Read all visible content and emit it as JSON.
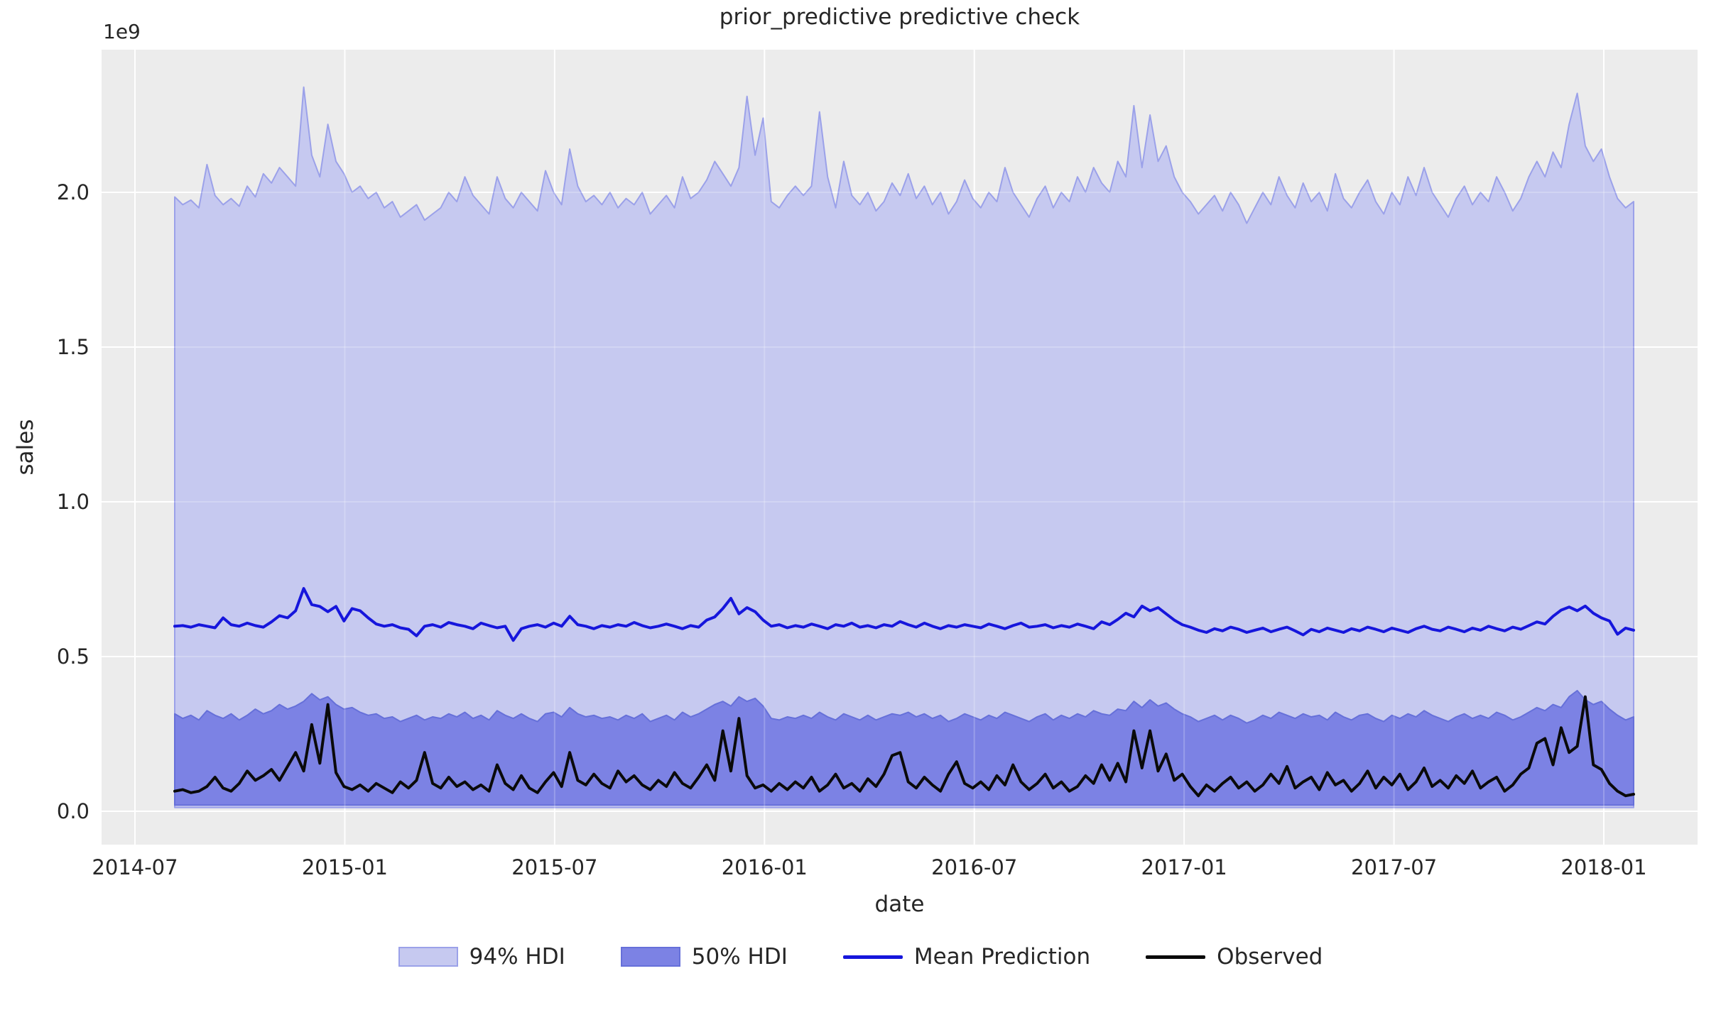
{
  "figure": {
    "title": "prior_predictive predictive check",
    "offset_text": "1e9",
    "xlabel": "date",
    "ylabel": "sales"
  },
  "axes": {
    "x_tick_labels": [
      "2014-07",
      "2015-01",
      "2015-07",
      "2016-01",
      "2016-07",
      "2017-01",
      "2017-07",
      "2018-01"
    ],
    "y_tick_labels": [
      "0.0",
      "0.5",
      "1.0",
      "1.5",
      "2.0"
    ],
    "background_color": "#ececec",
    "grid_color": "#ffffff",
    "text_color": "#262626"
  },
  "legend": {
    "items": [
      {
        "label": "94% HDI",
        "kind": "patch",
        "color": "#c6c9f0",
        "edge": "#9ba1e9"
      },
      {
        "label": "50% HDI",
        "kind": "patch",
        "color": "#7c82e4",
        "edge": "#6670d9"
      },
      {
        "label": "Mean Prediction",
        "kind": "line",
        "color": "#1616dc"
      },
      {
        "label": "Observed",
        "kind": "line",
        "color": "#0a0a0a"
      }
    ]
  },
  "chart_data": {
    "type": "area",
    "title": "prior_predictive predictive check",
    "xlabel": "date",
    "ylabel": "sales",
    "y_scale_factor": "1e9",
    "grid": true,
    "legend_position": "bottom center",
    "x": {
      "start_date": "2014-08-03",
      "step_days": 7,
      "n_points": 182,
      "end_date": "2018-01-21"
    },
    "xlim": [
      "2014-06-01",
      "2018-03-25"
    ],
    "ylim": [
      -0.11,
      2.46
    ],
    "y_axis_ticks": [
      0.0,
      0.5,
      1.0,
      1.5,
      2.0
    ],
    "series": [
      {
        "name": "94% HDI",
        "kind": "band",
        "fill": "#c6c9f0",
        "edge": "#9ba1e9",
        "lower_approx": 0.012,
        "upper": [
          1.985,
          1.96,
          1.975,
          1.95,
          2.09,
          1.99,
          1.96,
          1.98,
          1.955,
          2.02,
          1.985,
          2.06,
          2.03,
          2.08,
          2.05,
          2.02,
          2.34,
          2.12,
          2.05,
          2.22,
          2.1,
          2.06,
          2.0,
          2.02,
          1.98,
          2.0,
          1.95,
          1.97,
          1.92,
          1.94,
          1.96,
          1.91,
          1.93,
          1.95,
          2.0,
          1.97,
          2.05,
          1.99,
          1.96,
          1.93,
          2.05,
          1.98,
          1.95,
          2.0,
          1.97,
          1.94,
          2.07,
          2.0,
          1.96,
          2.14,
          2.02,
          1.97,
          1.99,
          1.96,
          2.0,
          1.95,
          1.98,
          1.96,
          2.0,
          1.93,
          1.96,
          1.99,
          1.95,
          2.05,
          1.98,
          2.0,
          2.04,
          2.1,
          2.06,
          2.02,
          2.08,
          2.31,
          2.12,
          2.24,
          1.97,
          1.95,
          1.99,
          2.02,
          1.99,
          2.02,
          2.26,
          2.05,
          1.95,
          2.1,
          1.99,
          1.96,
          2.0,
          1.94,
          1.97,
          2.03,
          1.99,
          2.06,
          1.98,
          2.02,
          1.96,
          2.0,
          1.93,
          1.97,
          2.04,
          1.98,
          1.95,
          2.0,
          1.97,
          2.08,
          2.0,
          1.96,
          1.92,
          1.98,
          2.02,
          1.95,
          2.0,
          1.97,
          2.05,
          2.0,
          2.08,
          2.03,
          2.0,
          2.1,
          2.05,
          2.28,
          2.08,
          2.25,
          2.1,
          2.15,
          2.05,
          2.0,
          1.97,
          1.93,
          1.96,
          1.99,
          1.94,
          2.0,
          1.96,
          1.9,
          1.95,
          2.0,
          1.96,
          2.05,
          1.99,
          1.95,
          2.03,
          1.97,
          2.0,
          1.94,
          2.06,
          1.98,
          1.95,
          2.0,
          2.04,
          1.97,
          1.93,
          2.0,
          1.96,
          2.05,
          1.99,
          2.08,
          2.0,
          1.96,
          1.92,
          1.98,
          2.02,
          1.96,
          2.0,
          1.97,
          2.05,
          2.0,
          1.94,
          1.98,
          2.05,
          2.1,
          2.05,
          2.13,
          2.08,
          2.22,
          2.32,
          2.15,
          2.1,
          2.14,
          2.05,
          1.98,
          1.95,
          1.97
        ]
      },
      {
        "name": "50% HDI",
        "kind": "band",
        "fill": "#7c82e4",
        "edge": "#6670d9",
        "lower_approx": 0.02,
        "upper": [
          0.315,
          0.3,
          0.31,
          0.295,
          0.325,
          0.31,
          0.3,
          0.315,
          0.295,
          0.31,
          0.33,
          0.315,
          0.325,
          0.345,
          0.33,
          0.34,
          0.355,
          0.38,
          0.36,
          0.37,
          0.345,
          0.33,
          0.335,
          0.32,
          0.31,
          0.315,
          0.3,
          0.305,
          0.29,
          0.3,
          0.31,
          0.295,
          0.305,
          0.3,
          0.315,
          0.305,
          0.32,
          0.3,
          0.31,
          0.295,
          0.325,
          0.31,
          0.3,
          0.315,
          0.3,
          0.29,
          0.315,
          0.32,
          0.305,
          0.335,
          0.315,
          0.305,
          0.31,
          0.3,
          0.305,
          0.295,
          0.31,
          0.3,
          0.315,
          0.29,
          0.3,
          0.31,
          0.295,
          0.32,
          0.305,
          0.315,
          0.33,
          0.345,
          0.355,
          0.34,
          0.37,
          0.355,
          0.365,
          0.34,
          0.3,
          0.295,
          0.305,
          0.3,
          0.31,
          0.3,
          0.32,
          0.305,
          0.295,
          0.315,
          0.305,
          0.295,
          0.31,
          0.295,
          0.305,
          0.315,
          0.31,
          0.32,
          0.305,
          0.315,
          0.3,
          0.31,
          0.29,
          0.3,
          0.315,
          0.305,
          0.295,
          0.31,
          0.3,
          0.32,
          0.31,
          0.3,
          0.29,
          0.305,
          0.315,
          0.295,
          0.31,
          0.3,
          0.315,
          0.305,
          0.325,
          0.315,
          0.31,
          0.33,
          0.325,
          0.355,
          0.335,
          0.36,
          0.34,
          0.35,
          0.33,
          0.315,
          0.305,
          0.29,
          0.3,
          0.31,
          0.295,
          0.31,
          0.3,
          0.285,
          0.295,
          0.31,
          0.3,
          0.32,
          0.31,
          0.3,
          0.315,
          0.305,
          0.31,
          0.295,
          0.32,
          0.305,
          0.295,
          0.31,
          0.315,
          0.3,
          0.29,
          0.31,
          0.3,
          0.315,
          0.305,
          0.325,
          0.31,
          0.3,
          0.29,
          0.305,
          0.315,
          0.3,
          0.31,
          0.3,
          0.32,
          0.31,
          0.295,
          0.305,
          0.32,
          0.335,
          0.325,
          0.345,
          0.335,
          0.37,
          0.39,
          0.36,
          0.345,
          0.355,
          0.33,
          0.31,
          0.295,
          0.305
        ]
      },
      {
        "name": "Mean Prediction",
        "kind": "line",
        "color": "#1616dc",
        "values": [
          0.598,
          0.6,
          0.595,
          0.603,
          0.598,
          0.593,
          0.625,
          0.603,
          0.598,
          0.608,
          0.6,
          0.595,
          0.612,
          0.632,
          0.625,
          0.648,
          0.72,
          0.668,
          0.662,
          0.645,
          0.662,
          0.615,
          0.655,
          0.648,
          0.625,
          0.605,
          0.598,
          0.603,
          0.593,
          0.588,
          0.567,
          0.598,
          0.603,
          0.595,
          0.61,
          0.603,
          0.598,
          0.59,
          0.608,
          0.6,
          0.593,
          0.598,
          0.552,
          0.59,
          0.598,
          0.603,
          0.595,
          0.608,
          0.598,
          0.63,
          0.603,
          0.598,
          0.59,
          0.6,
          0.595,
          0.603,
          0.598,
          0.61,
          0.6,
          0.593,
          0.598,
          0.605,
          0.598,
          0.59,
          0.6,
          0.595,
          0.618,
          0.628,
          0.655,
          0.688,
          0.638,
          0.658,
          0.645,
          0.618,
          0.598,
          0.603,
          0.593,
          0.6,
          0.595,
          0.605,
          0.598,
          0.59,
          0.603,
          0.598,
          0.608,
          0.595,
          0.6,
          0.593,
          0.603,
          0.598,
          0.613,
          0.603,
          0.595,
          0.608,
          0.598,
          0.59,
          0.6,
          0.595,
          0.603,
          0.598,
          0.593,
          0.605,
          0.598,
          0.59,
          0.6,
          0.608,
          0.595,
          0.598,
          0.603,
          0.593,
          0.6,
          0.595,
          0.605,
          0.598,
          0.59,
          0.612,
          0.603,
          0.62,
          0.64,
          0.628,
          0.663,
          0.648,
          0.658,
          0.638,
          0.618,
          0.603,
          0.595,
          0.585,
          0.578,
          0.59,
          0.583,
          0.595,
          0.588,
          0.578,
          0.585,
          0.592,
          0.58,
          0.588,
          0.595,
          0.583,
          0.57,
          0.588,
          0.58,
          0.592,
          0.585,
          0.578,
          0.59,
          0.583,
          0.595,
          0.588,
          0.58,
          0.592,
          0.585,
          0.578,
          0.59,
          0.598,
          0.588,
          0.583,
          0.595,
          0.588,
          0.58,
          0.592,
          0.585,
          0.598,
          0.59,
          0.583,
          0.595,
          0.588,
          0.6,
          0.612,
          0.605,
          0.63,
          0.65,
          0.66,
          0.648,
          0.663,
          0.64,
          0.625,
          0.615,
          0.572,
          0.592,
          0.585
        ]
      },
      {
        "name": "Observed",
        "kind": "line",
        "color": "#0a0a0a",
        "values": [
          0.065,
          0.07,
          0.06,
          0.065,
          0.08,
          0.11,
          0.075,
          0.065,
          0.09,
          0.13,
          0.1,
          0.115,
          0.135,
          0.1,
          0.145,
          0.19,
          0.13,
          0.28,
          0.155,
          0.345,
          0.125,
          0.08,
          0.07,
          0.085,
          0.065,
          0.09,
          0.075,
          0.06,
          0.095,
          0.075,
          0.1,
          0.19,
          0.09,
          0.075,
          0.11,
          0.08,
          0.095,
          0.07,
          0.085,
          0.065,
          0.15,
          0.09,
          0.07,
          0.115,
          0.075,
          0.06,
          0.095,
          0.125,
          0.08,
          0.19,
          0.1,
          0.085,
          0.12,
          0.09,
          0.075,
          0.13,
          0.095,
          0.115,
          0.085,
          0.07,
          0.1,
          0.08,
          0.125,
          0.09,
          0.075,
          0.11,
          0.15,
          0.1,
          0.26,
          0.13,
          0.3,
          0.115,
          0.075,
          0.085,
          0.065,
          0.09,
          0.07,
          0.095,
          0.075,
          0.11,
          0.065,
          0.085,
          0.12,
          0.075,
          0.09,
          0.065,
          0.105,
          0.08,
          0.12,
          0.18,
          0.19,
          0.095,
          0.075,
          0.11,
          0.085,
          0.065,
          0.12,
          0.16,
          0.09,
          0.075,
          0.095,
          0.07,
          0.115,
          0.085,
          0.15,
          0.095,
          0.07,
          0.09,
          0.12,
          0.075,
          0.095,
          0.065,
          0.08,
          0.115,
          0.09,
          0.15,
          0.1,
          0.155,
          0.095,
          0.26,
          0.14,
          0.26,
          0.13,
          0.185,
          0.1,
          0.12,
          0.08,
          0.05,
          0.085,
          0.065,
          0.09,
          0.11,
          0.075,
          0.095,
          0.065,
          0.085,
          0.12,
          0.09,
          0.145,
          0.075,
          0.095,
          0.11,
          0.07,
          0.125,
          0.085,
          0.1,
          0.065,
          0.09,
          0.13,
          0.075,
          0.11,
          0.085,
          0.12,
          0.07,
          0.095,
          0.14,
          0.08,
          0.1,
          0.075,
          0.115,
          0.09,
          0.13,
          0.075,
          0.095,
          0.11,
          0.065,
          0.085,
          0.12,
          0.14,
          0.22,
          0.235,
          0.15,
          0.27,
          0.19,
          0.21,
          0.37,
          0.15,
          0.135,
          0.09,
          0.065,
          0.05,
          0.055
        ]
      }
    ]
  }
}
